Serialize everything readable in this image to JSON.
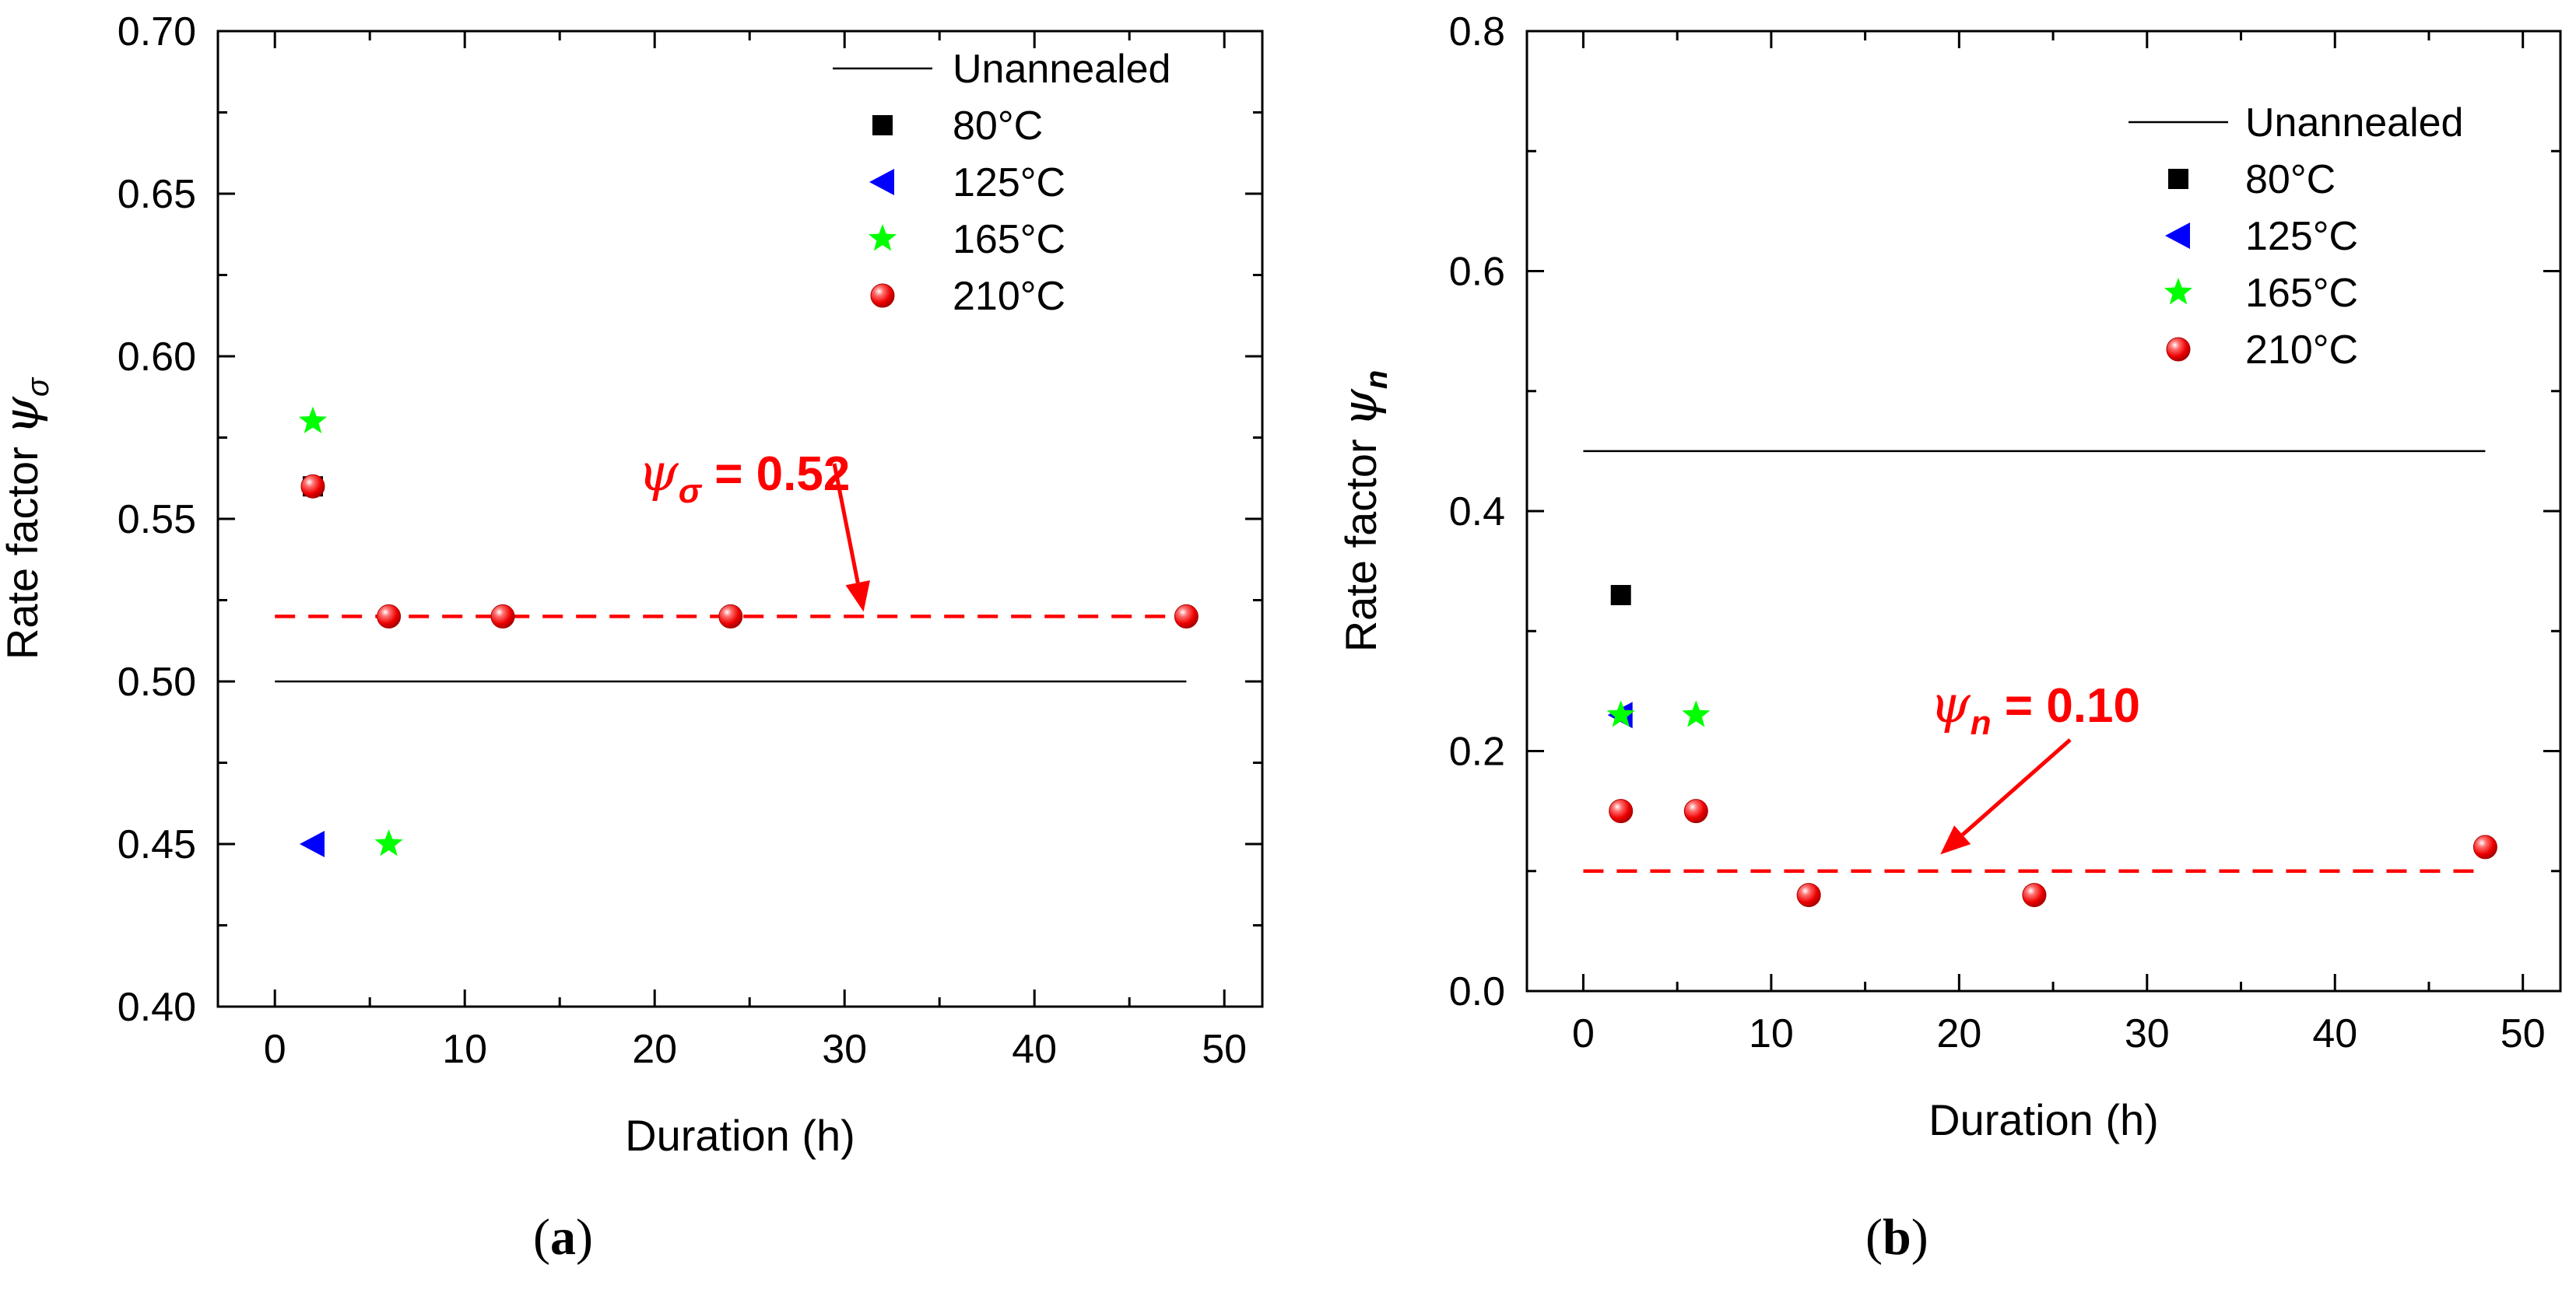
{
  "chart_data": [
    {
      "type": "scatter",
      "panel_label": {
        "open": "(",
        "letter": "a",
        "close": ")"
      },
      "xlabel": "Duration (h)",
      "ylabel": {
        "text": "Rate factor ",
        "symbol": "ψ",
        "subscript": "σ"
      },
      "xlim": [
        -3,
        52
      ],
      "ylim": [
        0.4,
        0.7
      ],
      "xticks": [
        "0",
        "10",
        "20",
        "30",
        "40",
        "50"
      ],
      "yticks": [
        "0.40",
        "0.45",
        "0.50",
        "0.55",
        "0.60",
        "0.65",
        "0.70"
      ],
      "reference_line": {
        "name": "Unannealed",
        "x": [
          0,
          48
        ],
        "y": 0.5
      },
      "fit_line": {
        "x": [
          0,
          48
        ],
        "y": 0.52
      },
      "annotation": {
        "symbol": "ψ",
        "subscript": "σ",
        "text": " = 0.52",
        "arrow_to": [
          31,
          0.52
        ]
      },
      "series": [
        {
          "name": "80°C",
          "marker": "square",
          "color": "#000000",
          "x": [
            2
          ],
          "y": [
            0.56
          ]
        },
        {
          "name": "125°C",
          "marker": "triangle-left",
          "color": "#0000ff",
          "x": [
            2
          ],
          "y": [
            0.45
          ]
        },
        {
          "name": "165°C",
          "marker": "star",
          "color": "#00ff00",
          "x": [
            2,
            6
          ],
          "y": [
            0.58,
            0.45
          ]
        },
        {
          "name": "210°C",
          "marker": "sphere",
          "color": "#ff0000",
          "x": [
            2,
            6,
            12,
            24,
            48
          ],
          "y": [
            0.56,
            0.52,
            0.52,
            0.52,
            0.52
          ]
        }
      ]
    },
    {
      "type": "scatter",
      "panel_label": {
        "open": "(",
        "letter": "b",
        "close": ")"
      },
      "xlabel": "Duration (h)",
      "ylabel": {
        "text": "Rate factor ",
        "symbol": "ψ",
        "subscript": "n"
      },
      "xlim": [
        -3,
        52
      ],
      "ylim": [
        0.0,
        0.8
      ],
      "xticks": [
        "0",
        "10",
        "20",
        "30",
        "40",
        "50"
      ],
      "yticks": [
        "0.0",
        "0.2",
        "0.4",
        "0.6",
        "0.8"
      ],
      "reference_line": {
        "name": "Unannealed",
        "x": [
          0,
          48
        ],
        "y": 0.45
      },
      "fit_line": {
        "x": [
          0,
          48
        ],
        "y": 0.1
      },
      "annotation": {
        "symbol": "ψ",
        "subscript": "n",
        "text": " = 0.10",
        "arrow_to": [
          19,
          0.11
        ]
      },
      "series": [
        {
          "name": "80°C",
          "marker": "square",
          "color": "#000000",
          "x": [
            2
          ],
          "y": [
            0.33
          ]
        },
        {
          "name": "125°C",
          "marker": "triangle-left",
          "color": "#0000ff",
          "x": [
            2
          ],
          "y": [
            0.23
          ]
        },
        {
          "name": "165°C",
          "marker": "star",
          "color": "#00ff00",
          "x": [
            2,
            6
          ],
          "y": [
            0.23,
            0.23
          ]
        },
        {
          "name": "210°C",
          "marker": "sphere",
          "color": "#ff0000",
          "x": [
            2,
            6,
            12,
            24,
            48
          ],
          "y": [
            0.15,
            0.15,
            0.08,
            0.08,
            0.12
          ]
        }
      ]
    }
  ]
}
